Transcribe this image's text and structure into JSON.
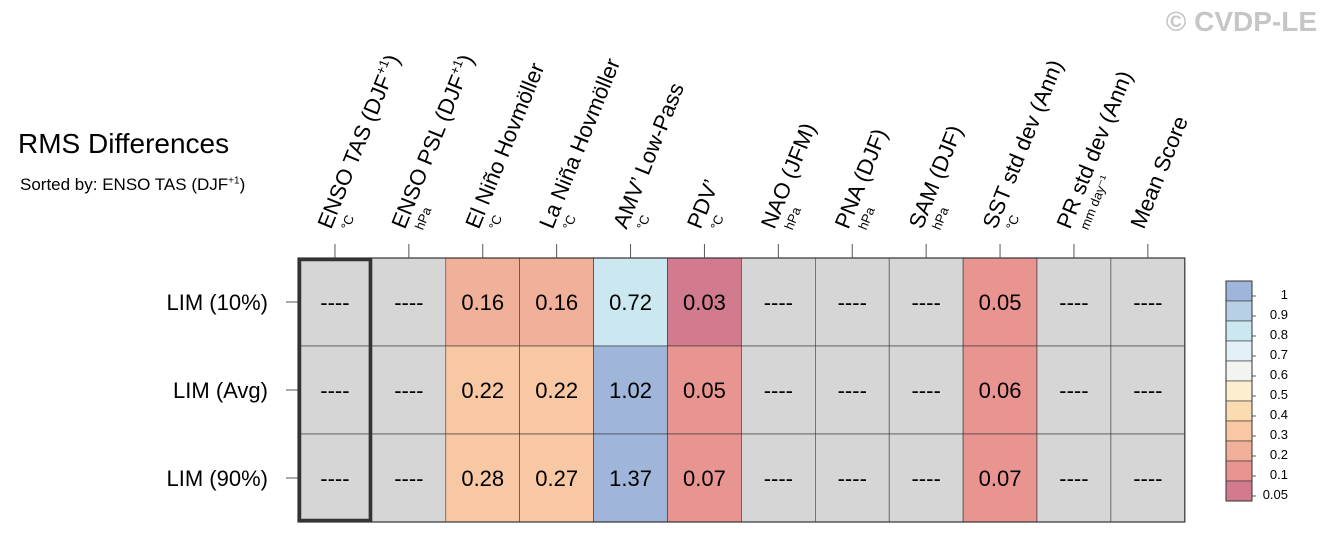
{
  "copyright": "© CVDP-LE",
  "title": "RMS Differences",
  "subtitle": {
    "prefix": "Sorted by: ENSO TAS (DJF",
    "sup": "+1",
    "suffix": ")"
  },
  "chart_data": {
    "type": "heatmap",
    "columns": [
      {
        "label": "ENSO TAS (DJF",
        "sup": "+1",
        "tail": ")",
        "unit": "°C"
      },
      {
        "label": "ENSO PSL (DJF",
        "sup": "+1",
        "tail": ")",
        "unit": "hPa"
      },
      {
        "label": "El Niño Hovmöller",
        "sup": "",
        "tail": "",
        "unit": "°C"
      },
      {
        "label": "La Niña Hovmöller",
        "sup": "",
        "tail": "",
        "unit": "°C"
      },
      {
        "label": "AMV’ Low-Pass",
        "sup": "",
        "tail": "",
        "unit": "°C"
      },
      {
        "label": "PDV’",
        "sup": "",
        "tail": "",
        "unit": "°C"
      },
      {
        "label": "NAO (JFM)",
        "sup": "",
        "tail": "",
        "unit": "hPa"
      },
      {
        "label": "PNA (DJF)",
        "sup": "",
        "tail": "",
        "unit": "hPa"
      },
      {
        "label": "SAM (DJF)",
        "sup": "",
        "tail": "",
        "unit": "hPa"
      },
      {
        "label": "SST std dev (Ann)",
        "sup": "",
        "tail": "",
        "unit": "°C"
      },
      {
        "label": "PR std dev (Ann)",
        "sup": "",
        "tail": "",
        "unit": "mm day⁻¹"
      },
      {
        "label": "Mean Score",
        "sup": "",
        "tail": "",
        "unit": ""
      }
    ],
    "rows": [
      {
        "label": "LIM (10%)",
        "values": [
          null,
          null,
          0.16,
          0.16,
          0.72,
          0.03,
          null,
          null,
          null,
          0.05,
          null,
          null
        ]
      },
      {
        "label": "LIM (Avg)",
        "values": [
          null,
          null,
          0.22,
          0.22,
          1.02,
          0.05,
          null,
          null,
          null,
          0.06,
          null,
          null
        ]
      },
      {
        "label": "LIM (90%)",
        "values": [
          null,
          null,
          0.28,
          0.27,
          1.37,
          0.07,
          null,
          null,
          null,
          0.07,
          null,
          null
        ]
      }
    ],
    "missing_text": "----",
    "missing_color": "#d6d6d6",
    "highlight_column": 0,
    "colorbar": {
      "levels": [
        0.05,
        0.1,
        0.2,
        0.3,
        0.4,
        0.5,
        0.6,
        0.7,
        0.8,
        0.9,
        1
      ],
      "labels": [
        "1",
        "0.9",
        "0.8",
        "0.7",
        "0.6",
        "0.5",
        "0.4",
        "0.3",
        "0.2",
        "0.1",
        "0.05"
      ],
      "bin_colors": [
        "#d27a8e",
        "#e89490",
        "#f1b09a",
        "#f8c7a3",
        "#fbdbb0",
        "#fcefcf",
        "#f1f4ef",
        "#e3f1f6",
        "#cbe7f0",
        "#b7d0e6",
        "#a0b5da"
      ]
    }
  }
}
